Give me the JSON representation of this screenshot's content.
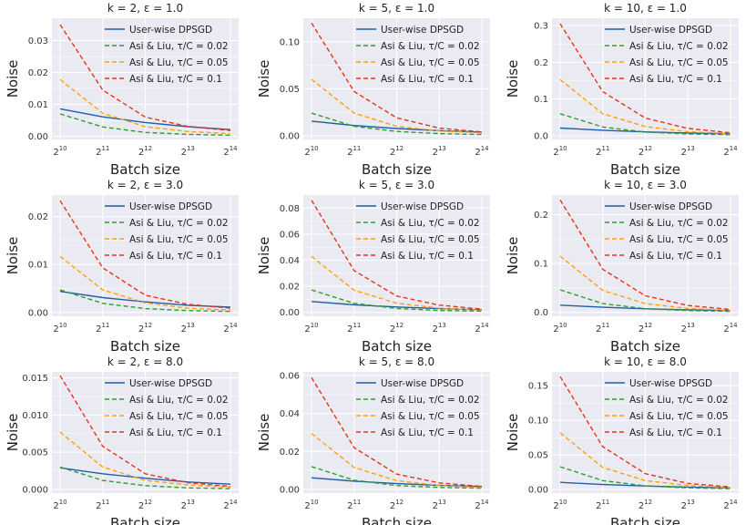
{
  "chart_data": [
    {
      "type": "line",
      "title": "k = 2, ε = 1.0",
      "xlabel": "Batch size",
      "ylabel": "Noise",
      "x_exponents": [
        10,
        11,
        12,
        13,
        14
      ],
      "ylim": [
        -0.001,
        0.037
      ],
      "yticks": [
        "0.00",
        "0.01",
        "0.02",
        "0.03"
      ],
      "ytick_values": [
        0,
        0.01,
        0.02,
        0.03
      ],
      "series": [
        {
          "name": "User-wise DPSGD",
          "values": [
            0.0086,
            0.0061,
            0.0043,
            0.003,
            0.0021
          ]
        },
        {
          "name": "Asi & Liu, τ/C = 0.02",
          "values": [
            0.007,
            0.0029,
            0.0012,
            0.0006,
            0.0003
          ]
        },
        {
          "name": "Asi & Liu, τ/C = 0.05",
          "values": [
            0.0178,
            0.0072,
            0.003,
            0.0015,
            0.0008
          ]
        },
        {
          "name": "Asi & Liu, τ/C = 0.1",
          "values": [
            0.035,
            0.0145,
            0.006,
            0.0031,
            0.0018
          ]
        }
      ]
    },
    {
      "type": "line",
      "title": "k = 5, ε = 1.0",
      "xlabel": "Batch size",
      "ylabel": "Noise",
      "x_exponents": [
        10,
        11,
        12,
        13,
        14
      ],
      "ylim": [
        -0.004,
        0.125
      ],
      "yticks": [
        "0.00",
        "0.05",
        "0.10"
      ],
      "ytick_values": [
        0,
        0.05,
        0.1
      ],
      "series": [
        {
          "name": "User-wise DPSGD",
          "values": [
            0.0155,
            0.0108,
            0.0076,
            0.0054,
            0.0038
          ]
        },
        {
          "name": "Asi & Liu, τ/C = 0.02",
          "values": [
            0.024,
            0.01,
            0.0045,
            0.0022,
            0.0012
          ]
        },
        {
          "name": "Asi & Liu, τ/C = 0.05",
          "values": [
            0.06,
            0.024,
            0.01,
            0.005,
            0.003
          ]
        },
        {
          "name": "Asi & Liu, τ/C = 0.1",
          "values": [
            0.12,
            0.047,
            0.019,
            0.008,
            0.004
          ]
        }
      ]
    },
    {
      "type": "line",
      "title": "k = 10, ε = 1.0",
      "xlabel": "Batch size",
      "ylabel": "Noise",
      "x_exponents": [
        10,
        11,
        12,
        13,
        14
      ],
      "ylim": [
        -0.01,
        0.32
      ],
      "yticks": [
        "0.0",
        "0.1",
        "0.2",
        "0.3"
      ],
      "ytick_values": [
        0,
        0.1,
        0.2,
        0.3
      ],
      "series": [
        {
          "name": "User-wise DPSGD",
          "values": [
            0.021,
            0.015,
            0.0105,
            0.0075,
            0.0053
          ]
        },
        {
          "name": "Asi & Liu, τ/C = 0.02",
          "values": [
            0.06,
            0.024,
            0.01,
            0.005,
            0.003
          ]
        },
        {
          "name": "Asi & Liu, τ/C = 0.05",
          "values": [
            0.153,
            0.06,
            0.025,
            0.011,
            0.006
          ]
        },
        {
          "name": "Asi & Liu, τ/C = 0.1",
          "values": [
            0.305,
            0.12,
            0.048,
            0.02,
            0.008
          ]
        }
      ]
    },
    {
      "type": "line",
      "title": "k = 2, ε = 3.0",
      "xlabel": "Batch size",
      "ylabel": "Noise",
      "x_exponents": [
        10,
        11,
        12,
        13,
        14
      ],
      "ylim": [
        -0.0008,
        0.0245
      ],
      "yticks": [
        "0.00",
        "0.01",
        "0.02"
      ],
      "ytick_values": [
        0,
        0.01,
        0.02
      ],
      "series": [
        {
          "name": "User-wise DPSGD",
          "values": [
            0.0044,
            0.0031,
            0.0022,
            0.0015,
            0.0011
          ]
        },
        {
          "name": "Asi & Liu, τ/C = 0.02",
          "values": [
            0.0047,
            0.0019,
            0.0008,
            0.0004,
            0.0002
          ]
        },
        {
          "name": "Asi & Liu, τ/C = 0.05",
          "values": [
            0.0117,
            0.0047,
            0.002,
            0.0009,
            0.0005
          ]
        },
        {
          "name": "Asi & Liu, τ/C = 0.1",
          "values": [
            0.0233,
            0.0093,
            0.0036,
            0.0017,
            0.0009
          ]
        }
      ]
    },
    {
      "type": "line",
      "title": "k = 5, ε = 3.0",
      "xlabel": "Batch size",
      "ylabel": "Noise",
      "x_exponents": [
        10,
        11,
        12,
        13,
        14
      ],
      "ylim": [
        -0.003,
        0.09
      ],
      "yticks": [
        "0.00",
        "0.02",
        "0.04",
        "0.06",
        "0.08"
      ],
      "ytick_values": [
        0,
        0.02,
        0.04,
        0.06,
        0.08
      ],
      "series": [
        {
          "name": "User-wise DPSGD",
          "values": [
            0.0083,
            0.0058,
            0.0041,
            0.0029,
            0.002
          ]
        },
        {
          "name": "Asi & Liu, τ/C = 0.02",
          "values": [
            0.0172,
            0.0069,
            0.003,
            0.0015,
            0.0009
          ]
        },
        {
          "name": "Asi & Liu, τ/C = 0.05",
          "values": [
            0.043,
            0.017,
            0.007,
            0.0032,
            0.0017
          ]
        },
        {
          "name": "Asi & Liu, τ/C = 0.1",
          "values": [
            0.086,
            0.032,
            0.0125,
            0.0055,
            0.0025
          ]
        }
      ]
    },
    {
      "type": "line",
      "title": "k = 10, ε = 3.0",
      "xlabel": "Batch size",
      "ylabel": "Noise",
      "x_exponents": [
        10,
        11,
        12,
        13,
        14
      ],
      "ylim": [
        -0.008,
        0.24
      ],
      "yticks": [
        "0.0",
        "0.1",
        "0.2"
      ],
      "ytick_values": [
        0,
        0.1,
        0.2
      ],
      "series": [
        {
          "name": "User-wise DPSGD",
          "values": [
            0.0148,
            0.0104,
            0.0073,
            0.0052,
            0.0037
          ]
        },
        {
          "name": "Asi & Liu, τ/C = 0.02",
          "values": [
            0.046,
            0.018,
            0.0075,
            0.0037,
            0.002
          ]
        },
        {
          "name": "Asi & Liu, τ/C = 0.05",
          "values": [
            0.115,
            0.045,
            0.018,
            0.008,
            0.004
          ]
        },
        {
          "name": "Asi & Liu, τ/C = 0.1",
          "values": [
            0.23,
            0.088,
            0.034,
            0.014,
            0.006
          ]
        }
      ]
    },
    {
      "type": "line",
      "title": "k = 2, ε = 8.0",
      "xlabel": "Batch size",
      "ylabel": "Noise",
      "x_exponents": [
        10,
        11,
        12,
        13,
        14
      ],
      "ylim": [
        -0.0005,
        0.0158
      ],
      "yticks": [
        "0.000",
        "0.005",
        "0.010",
        "0.015"
      ],
      "ytick_values": [
        0,
        0.005,
        0.01,
        0.015
      ],
      "series": [
        {
          "name": "User-wise DPSGD",
          "values": [
            0.0029,
            0.0021,
            0.0015,
            0.001,
            0.0007
          ]
        },
        {
          "name": "Asi & Liu, τ/C = 0.02",
          "values": [
            0.003,
            0.0012,
            0.0005,
            0.0002,
            0.0001
          ]
        },
        {
          "name": "Asi & Liu, τ/C = 0.05",
          "values": [
            0.0077,
            0.003,
            0.0012,
            0.0006,
            0.0003
          ]
        },
        {
          "name": "Asi & Liu, τ/C = 0.1",
          "values": [
            0.0153,
            0.0058,
            0.0021,
            0.0009,
            0.0004
          ]
        }
      ]
    },
    {
      "type": "line",
      "title": "k = 5, ε = 8.0",
      "xlabel": "Batch size",
      "ylabel": "Noise",
      "x_exponents": [
        10,
        11,
        12,
        13,
        14
      ],
      "ylim": [
        -0.002,
        0.062
      ],
      "yticks": [
        "0.00",
        "0.02",
        "0.04",
        "0.06"
      ],
      "ytick_values": [
        0,
        0.02,
        0.04,
        0.06
      ],
      "series": [
        {
          "name": "User-wise DPSGD",
          "values": [
            0.0061,
            0.0043,
            0.003,
            0.0021,
            0.0015
          ]
        },
        {
          "name": "Asi & Liu, τ/C = 0.02",
          "values": [
            0.012,
            0.0048,
            0.002,
            0.001,
            0.0006
          ]
        },
        {
          "name": "Asi & Liu, τ/C = 0.05",
          "values": [
            0.0295,
            0.0115,
            0.0046,
            0.002,
            0.001
          ]
        },
        {
          "name": "Asi & Liu, τ/C = 0.1",
          "values": [
            0.059,
            0.022,
            0.008,
            0.0034,
            0.0015
          ]
        }
      ]
    },
    {
      "type": "line",
      "title": "k = 10, ε = 8.0",
      "xlabel": "Batch size",
      "ylabel": "Noise",
      "x_exponents": [
        10,
        11,
        12,
        13,
        14
      ],
      "ylim": [
        -0.005,
        0.17
      ],
      "yticks": [
        "0.00",
        "0.05",
        "0.10",
        "0.15"
      ],
      "ytick_values": [
        0,
        0.05,
        0.1,
        0.15
      ],
      "series": [
        {
          "name": "User-wise DPSGD",
          "values": [
            0.0105,
            0.0074,
            0.0052,
            0.0037,
            0.0026
          ]
        },
        {
          "name": "Asi & Liu, τ/C = 0.02",
          "values": [
            0.033,
            0.013,
            0.0054,
            0.0026,
            0.0014
          ]
        },
        {
          "name": "Asi & Liu, τ/C = 0.05",
          "values": [
            0.082,
            0.032,
            0.013,
            0.006,
            0.003
          ]
        },
        {
          "name": "Asi & Liu, τ/C = 0.1",
          "values": [
            0.163,
            0.062,
            0.023,
            0.009,
            0.004
          ]
        }
      ]
    }
  ],
  "colors": {
    "user_wise": "#1f5ea8",
    "tau_002": "#2ca02c",
    "tau_005": "#ff9f0e",
    "tau_01": "#e8331c",
    "panel_bg": "#eaeaf2",
    "grid": "#ffffff"
  }
}
